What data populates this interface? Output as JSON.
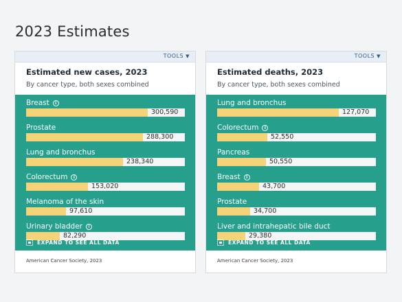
{
  "page": {
    "title": "2023 Estimates"
  },
  "cards": [
    {
      "tools_label": "TOOLS",
      "title": "Estimated new cases, 2023",
      "subtitle": "By cancer type, both sexes combined",
      "expand_label": "EXPAND TO SEE ALL DATA",
      "source": "American Cancer Society, 2023",
      "scale_max": 300590,
      "rows": [
        {
          "label": "Breast",
          "value": 300590,
          "value_text": "300,590",
          "info": true
        },
        {
          "label": "Prostate",
          "value": 288300,
          "value_text": "288,300",
          "info": false
        },
        {
          "label": "Lung and bronchus",
          "value": 238340,
          "value_text": "238,340",
          "info": false
        },
        {
          "label": "Colorectum",
          "value": 153020,
          "value_text": "153,020",
          "info": true
        },
        {
          "label": "Melanoma of the skin",
          "value": 97610,
          "value_text": "97,610",
          "info": false
        },
        {
          "label": "Urinary bladder",
          "value": 82290,
          "value_text": "82,290",
          "info": true
        }
      ]
    },
    {
      "tools_label": "TOOLS",
      "title": "Estimated deaths, 2023",
      "subtitle": "By cancer type, both sexes combined",
      "expand_label": "EXPAND TO SEE ALL DATA",
      "source": "American Cancer Society, 2023",
      "scale_max": 127070,
      "rows": [
        {
          "label": "Lung and bronchus",
          "value": 127070,
          "value_text": "127,070",
          "info": false
        },
        {
          "label": "Colorectum",
          "value": 52550,
          "value_text": "52,550",
          "info": true
        },
        {
          "label": "Pancreas",
          "value": 50550,
          "value_text": "50,550",
          "info": false
        },
        {
          "label": "Breast",
          "value": 43700,
          "value_text": "43,700",
          "info": true
        },
        {
          "label": "Prostate",
          "value": 34700,
          "value_text": "34,700",
          "info": false
        },
        {
          "label": "Liver and intrahepatic bile duct",
          "value": 29380,
          "value_text": "29,380",
          "info": false
        }
      ]
    }
  ],
  "colors": {
    "panel": "#26a08d",
    "bar": "#f5d479",
    "track": "#f4f5f6"
  }
}
